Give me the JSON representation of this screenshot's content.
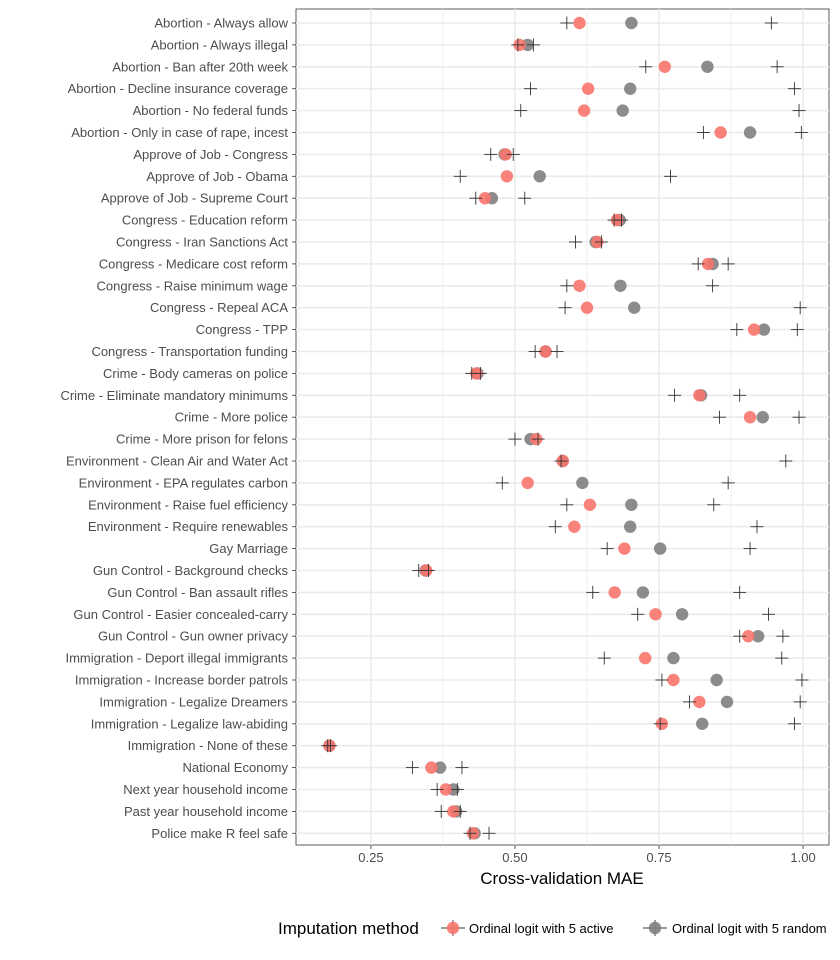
{
  "chart_data": {
    "type": "scatter",
    "title": "",
    "xlabel": "Cross-validation MAE",
    "ylabel": "",
    "xlim": [
      0.12,
      1.045
    ],
    "xticks": [
      0.25,
      0.5,
      0.75,
      1.0
    ],
    "xtick_labels": [
      "0.25",
      "0.50",
      "0.75",
      "1.00"
    ],
    "grid": true,
    "legend_position": "bottom",
    "legend_title": "Imputation method",
    "colors": {
      "active": "#f8766d",
      "random": "#7f7f7f",
      "range": "#333333"
    },
    "series": [
      {
        "name": "Ordinal logit with 5 active",
        "key": "active"
      },
      {
        "name": "Ordinal logit with 5 random",
        "key": "random"
      }
    ],
    "categories": [
      "Abortion - Always allow",
      "Abortion - Always illegal",
      "Abortion - Ban after 20th week",
      "Abortion - Decline insurance coverage",
      "Abortion - No federal funds",
      "Abortion - Only in case of rape, incest",
      "Approve of Job - Congress",
      "Approve of Job - Obama",
      "Approve of Job - Supreme Court",
      "Congress - Education reform",
      "Congress - Iran Sanctions Act",
      "Congress - Medicare cost reform",
      "Congress - Raise minimum wage",
      "Congress - Repeal ACA",
      "Congress - TPP",
      "Congress - Transportation funding",
      "Crime - Body cameras on police",
      "Crime - Eliminate mandatory minimums",
      "Crime - More police",
      "Crime - More prison for felons",
      "Environment - Clean Air and Water Act",
      "Environment - EPA regulates carbon",
      "Environment - Raise fuel efficiency",
      "Environment - Require renewables",
      "Gay Marriage",
      "Gun Control - Background checks",
      "Gun Control - Ban assault rifles",
      "Gun Control - Easier concealed-carry",
      "Gun Control - Gun owner privacy",
      "Immigration - Deport illegal immigrants",
      "Immigration - Increase border patrols",
      "Immigration - Legalize Dreamers",
      "Immigration - Legalize law-abiding",
      "Immigration - None of these",
      "National Economy",
      "Next year household income",
      "Past year household income",
      "Police make R feel safe"
    ],
    "active": [
      0.612,
      0.508,
      0.76,
      0.627,
      0.62,
      0.857,
      0.484,
      0.486,
      0.448,
      0.677,
      0.643,
      0.835,
      0.612,
      0.625,
      0.915,
      0.553,
      0.433,
      0.82,
      0.908,
      0.537,
      0.583,
      0.522,
      0.63,
      0.603,
      0.69,
      0.346,
      0.673,
      0.744,
      0.905,
      0.726,
      0.775,
      0.82,
      0.755,
      0.178,
      0.355,
      0.38,
      0.393,
      0.427
    ],
    "random": [
      0.702,
      0.522,
      0.834,
      0.7,
      0.687,
      0.908,
      0.482,
      0.543,
      0.46,
      0.682,
      0.64,
      0.843,
      0.683,
      0.707,
      0.932,
      0.553,
      0.435,
      0.823,
      0.93,
      0.527,
      0.583,
      0.617,
      0.702,
      0.7,
      0.752,
      0.345,
      0.722,
      0.79,
      0.922,
      0.775,
      0.85,
      0.868,
      0.825,
      0.178,
      0.37,
      0.393,
      0.398,
      0.43
    ],
    "range_min": [
      0.59,
      0.505,
      0.727,
      0.527,
      0.51,
      0.827,
      0.458,
      0.405,
      0.432,
      0.672,
      0.605,
      0.818,
      0.59,
      0.587,
      0.885,
      0.535,
      0.425,
      0.777,
      0.855,
      0.5,
      0.58,
      0.478,
      0.59,
      0.57,
      0.66,
      0.333,
      0.635,
      0.713,
      0.89,
      0.655,
      0.755,
      0.803,
      0.752,
      0.175,
      0.322,
      0.365,
      0.372,
      0.422
    ],
    "range_max": [
      0.945,
      0.532,
      0.955,
      0.985,
      0.993,
      0.997,
      0.497,
      0.77,
      0.517,
      0.685,
      0.65,
      0.87,
      0.843,
      0.995,
      0.99,
      0.573,
      0.44,
      0.89,
      0.993,
      0.54,
      0.97,
      0.87,
      0.845,
      0.92,
      0.908,
      0.35,
      0.89,
      0.94,
      0.965,
      0.963,
      0.998,
      0.995,
      0.985,
      0.18,
      0.408,
      0.4,
      0.405,
      0.455
    ]
  }
}
